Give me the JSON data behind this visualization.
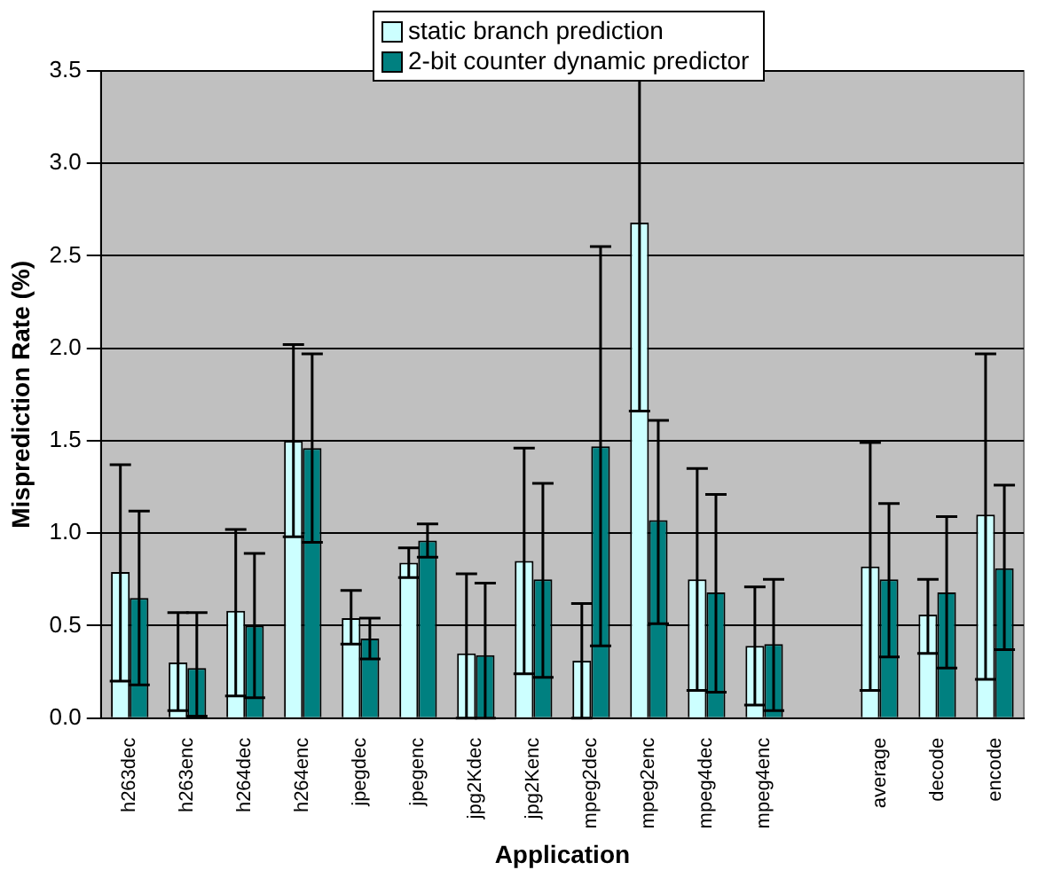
{
  "chart_data": {
    "type": "bar",
    "xlabel": "Application",
    "ylabel": "Misprediction Rate (%)",
    "categories": [
      "h263dec",
      "h263enc",
      "h264dec",
      "h264enc",
      "jpegdec",
      "jpegenc",
      "jpg2Kdec",
      "jpg2Kenc",
      "mpeg2dec",
      "mpeg2enc",
      "mpeg4dec",
      "mpeg4enc",
      null,
      "average",
      "decode",
      "encode"
    ],
    "series": [
      {
        "name": "static branch prediction",
        "color": "#ccffff",
        "values": [
          0.79,
          0.3,
          0.58,
          1.5,
          0.54,
          0.84,
          0.35,
          0.85,
          0.31,
          2.68,
          0.75,
          0.39,
          null,
          0.82,
          0.56,
          1.1
        ],
        "errors": [
          [
            0.2,
            1.37
          ],
          [
            0.04,
            0.57
          ],
          [
            0.12,
            1.02
          ],
          [
            0.98,
            2.02
          ],
          [
            0.4,
            0.69
          ],
          [
            0.76,
            0.92
          ],
          [
            0.0,
            0.78
          ],
          [
            0.24,
            1.46
          ],
          [
            0.0,
            0.62
          ],
          [
            1.66,
            3.5
          ],
          [
            0.15,
            1.35
          ],
          [
            0.07,
            0.71
          ],
          null,
          [
            0.15,
            1.49
          ],
          [
            0.35,
            0.75
          ],
          [
            0.21,
            1.97
          ]
        ]
      },
      {
        "name": "2-bit counter dynamic predictor",
        "color": "#008080",
        "values": [
          0.65,
          0.27,
          0.5,
          1.46,
          0.43,
          0.96,
          0.34,
          0.75,
          1.47,
          1.07,
          0.68,
          0.4,
          null,
          0.75,
          0.68,
          0.81
        ],
        "errors": [
          [
            0.18,
            1.12
          ],
          [
            0.01,
            0.57
          ],
          [
            0.11,
            0.89
          ],
          [
            0.95,
            1.97
          ],
          [
            0.32,
            0.54
          ],
          [
            0.87,
            1.05
          ],
          [
            0.0,
            0.73
          ],
          [
            0.22,
            1.27
          ],
          [
            0.39,
            2.55
          ],
          [
            0.51,
            1.61
          ],
          [
            0.14,
            1.21
          ],
          [
            0.04,
            0.75
          ],
          null,
          [
            0.33,
            1.16
          ],
          [
            0.27,
            1.09
          ],
          [
            0.37,
            1.26
          ]
        ]
      }
    ],
    "ylim": [
      0,
      3.5
    ],
    "yticks": [
      {
        "value": 0,
        "label": "0.0"
      },
      {
        "value": 0.5,
        "label": "0.5"
      },
      {
        "value": 1,
        "label": "1.0"
      },
      {
        "value": 1.5,
        "label": "1.5"
      },
      {
        "value": 2,
        "label": "2.0"
      },
      {
        "value": 2.5,
        "label": "2.5"
      },
      {
        "value": 3,
        "label": "3.0"
      },
      {
        "value": 3.5,
        "label": "3.5"
      }
    ],
    "grid": "y",
    "legend": "top"
  }
}
